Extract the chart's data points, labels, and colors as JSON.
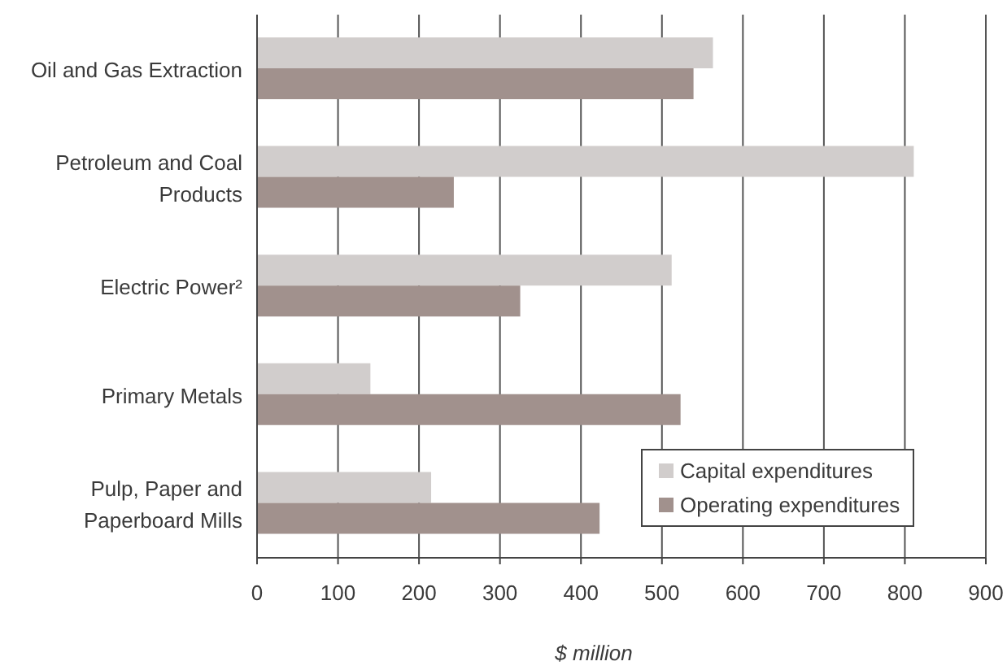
{
  "chart_data": {
    "type": "bar",
    "orientation": "horizontal",
    "categories": [
      "Oil and Gas Extraction",
      "Petroleum and Coal Products",
      "Electric Power²",
      "Primary Metals",
      "Pulp, Paper and Paperboard Mills"
    ],
    "series": [
      {
        "name": "Capital expenditures",
        "color": "#d1cdcc",
        "values": [
          563,
          811,
          512,
          140,
          215
        ]
      },
      {
        "name": "Operating expenditures",
        "color": "#a1918d",
        "values": [
          539,
          243,
          325,
          523,
          423
        ]
      }
    ],
    "xlabel": "$ million",
    "xlim": [
      0,
      900
    ],
    "xticks": [
      0,
      100,
      200,
      300,
      400,
      500,
      600,
      700,
      800,
      900
    ],
    "grid": "x",
    "legend": "bottom right"
  }
}
